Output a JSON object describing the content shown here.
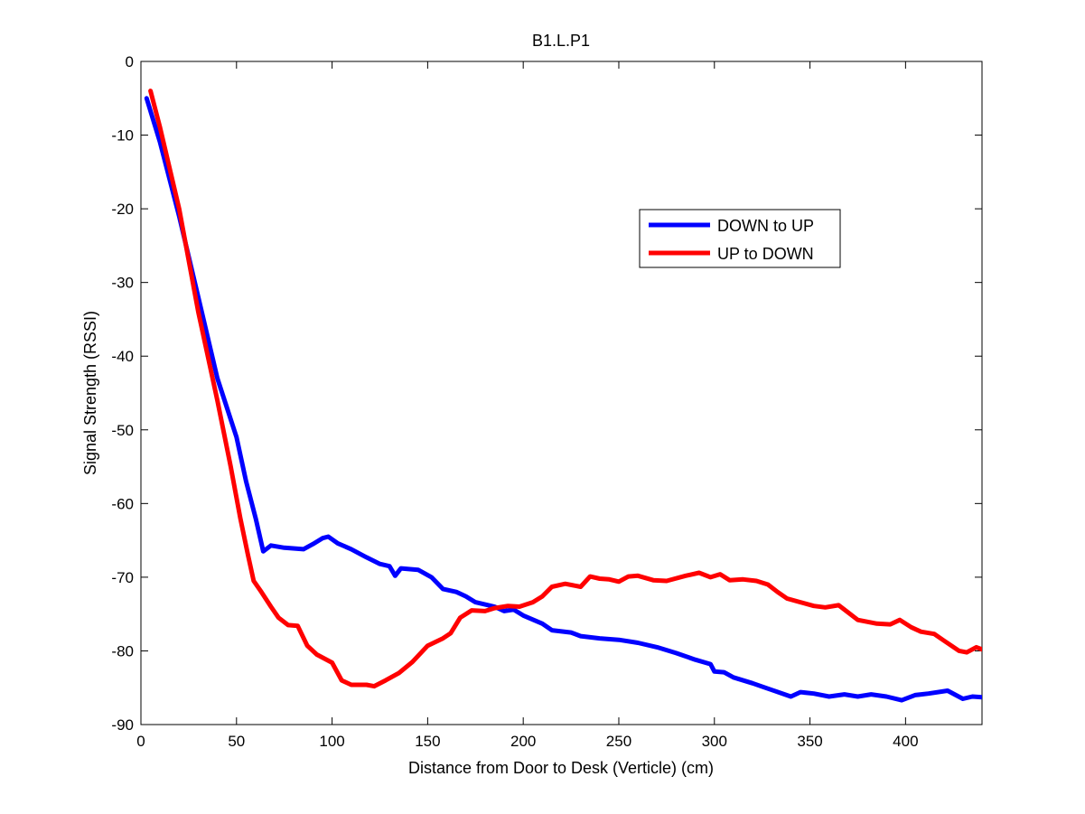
{
  "chart_data": {
    "type": "line",
    "title": "B1.L.P1",
    "xlabel": "Distance from Door to Desk (Verticle) (cm)",
    "ylabel": "Signal Strength (RSSI)",
    "xlim": [
      0,
      440
    ],
    "ylim": [
      -90,
      0
    ],
    "xticks": [
      0,
      50,
      100,
      150,
      200,
      250,
      300,
      350,
      400
    ],
    "yticks": [
      0,
      -10,
      -20,
      -30,
      -40,
      -50,
      -60,
      -70,
      -80,
      -90
    ],
    "grid": false,
    "legend_position": "upper-right-inside",
    "series": [
      {
        "name": "DOWN to UP",
        "color": "#0000ff",
        "points": [
          [
            3,
            -5
          ],
          [
            10,
            -11
          ],
          [
            20,
            -21
          ],
          [
            30,
            -32
          ],
          [
            40,
            -43
          ],
          [
            50,
            -51
          ],
          [
            55,
            -57
          ],
          [
            60,
            -62
          ],
          [
            64,
            -66.5
          ],
          [
            68,
            -65.7
          ],
          [
            75,
            -66
          ],
          [
            85,
            -66.2
          ],
          [
            90,
            -65.5
          ],
          [
            95,
            -64.7
          ],
          [
            98,
            -64.5
          ],
          [
            103,
            -65.4
          ],
          [
            110,
            -66.2
          ],
          [
            118,
            -67.3
          ],
          [
            125,
            -68.2
          ],
          [
            130,
            -68.5
          ],
          [
            133,
            -69.8
          ],
          [
            136,
            -68.8
          ],
          [
            145,
            -69
          ],
          [
            152,
            -70
          ],
          [
            158,
            -71.6
          ],
          [
            165,
            -72
          ],
          [
            170,
            -72.6
          ],
          [
            175,
            -73.4
          ],
          [
            180,
            -73.7
          ],
          [
            185,
            -74
          ],
          [
            190,
            -74.6
          ],
          [
            195,
            -74.4
          ],
          [
            200,
            -75.2
          ],
          [
            210,
            -76.3
          ],
          [
            215,
            -77.2
          ],
          [
            225,
            -77.5
          ],
          [
            230,
            -78
          ],
          [
            240,
            -78.3
          ],
          [
            250,
            -78.5
          ],
          [
            260,
            -78.9
          ],
          [
            270,
            -79.5
          ],
          [
            280,
            -80.3
          ],
          [
            290,
            -81.2
          ],
          [
            298,
            -81.8
          ],
          [
            300,
            -82.8
          ],
          [
            305,
            -82.9
          ],
          [
            310,
            -83.6
          ],
          [
            320,
            -84.4
          ],
          [
            330,
            -85.3
          ],
          [
            340,
            -86.2
          ],
          [
            345,
            -85.6
          ],
          [
            352,
            -85.8
          ],
          [
            360,
            -86.2
          ],
          [
            368,
            -85.9
          ],
          [
            375,
            -86.2
          ],
          [
            382,
            -85.9
          ],
          [
            390,
            -86.2
          ],
          [
            398,
            -86.7
          ],
          [
            405,
            -86
          ],
          [
            412,
            -85.8
          ],
          [
            422,
            -85.4
          ],
          [
            430,
            -86.5
          ],
          [
            435,
            -86.2
          ],
          [
            440,
            -86.3
          ]
        ]
      },
      {
        "name": "UP to DOWN",
        "color": "#ff0000",
        "points": [
          [
            5,
            -4
          ],
          [
            10,
            -9
          ],
          [
            20,
            -20
          ],
          [
            30,
            -34
          ],
          [
            40,
            -46
          ],
          [
            47,
            -55
          ],
          [
            52,
            -62
          ],
          [
            56,
            -67
          ],
          [
            59,
            -70.5
          ],
          [
            63,
            -72
          ],
          [
            68,
            -74
          ],
          [
            72,
            -75.5
          ],
          [
            77,
            -76.5
          ],
          [
            82,
            -76.6
          ],
          [
            87,
            -79.3
          ],
          [
            92,
            -80.5
          ],
          [
            100,
            -81.6
          ],
          [
            105,
            -84
          ],
          [
            110,
            -84.6
          ],
          [
            118,
            -84.6
          ],
          [
            122,
            -84.8
          ],
          [
            128,
            -84
          ],
          [
            135,
            -83
          ],
          [
            142,
            -81.5
          ],
          [
            150,
            -79.3
          ],
          [
            158,
            -78.3
          ],
          [
            162,
            -77.6
          ],
          [
            167,
            -75.5
          ],
          [
            173,
            -74.5
          ],
          [
            180,
            -74.6
          ],
          [
            185,
            -74.2
          ],
          [
            192,
            -73.9
          ],
          [
            198,
            -74
          ],
          [
            205,
            -73.4
          ],
          [
            210,
            -72.6
          ],
          [
            215,
            -71.3
          ],
          [
            222,
            -70.9
          ],
          [
            230,
            -71.3
          ],
          [
            235,
            -69.9
          ],
          [
            240,
            -70.2
          ],
          [
            245,
            -70.3
          ],
          [
            250,
            -70.6
          ],
          [
            255,
            -69.9
          ],
          [
            260,
            -69.8
          ],
          [
            268,
            -70.4
          ],
          [
            275,
            -70.5
          ],
          [
            285,
            -69.8
          ],
          [
            292,
            -69.4
          ],
          [
            298,
            -70
          ],
          [
            303,
            -69.6
          ],
          [
            308,
            -70.4
          ],
          [
            315,
            -70.3
          ],
          [
            322,
            -70.5
          ],
          [
            328,
            -71
          ],
          [
            333,
            -72
          ],
          [
            338,
            -72.9
          ],
          [
            345,
            -73.4
          ],
          [
            352,
            -73.9
          ],
          [
            358,
            -74.1
          ],
          [
            365,
            -73.8
          ],
          [
            370,
            -74.8
          ],
          [
            375,
            -75.8
          ],
          [
            385,
            -76.3
          ],
          [
            392,
            -76.4
          ],
          [
            397,
            -75.8
          ],
          [
            403,
            -76.8
          ],
          [
            408,
            -77.4
          ],
          [
            415,
            -77.7
          ],
          [
            420,
            -78.6
          ],
          [
            428,
            -80
          ],
          [
            432,
            -80.2
          ],
          [
            437,
            -79.5
          ],
          [
            440,
            -79.8
          ]
        ]
      }
    ]
  }
}
